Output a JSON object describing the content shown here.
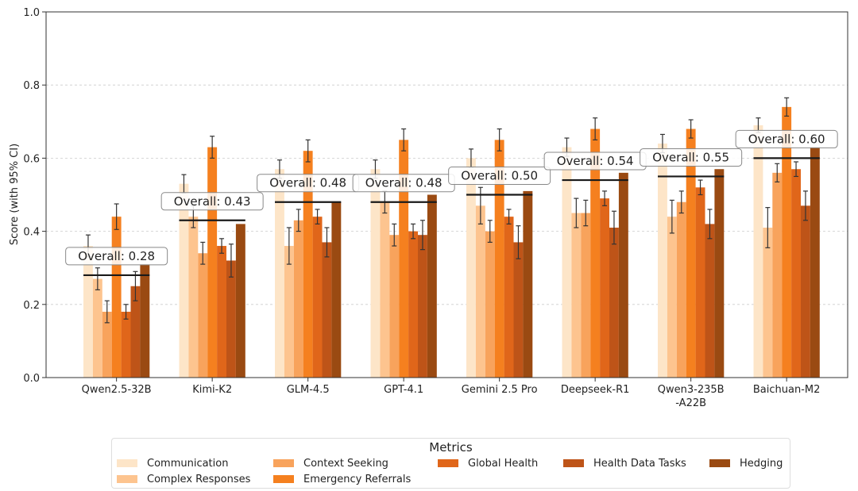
{
  "chart_data": {
    "type": "bar",
    "ylabel": "Score (with 95% CI)",
    "xlabel": "",
    "ylim": [
      0.0,
      1.0
    ],
    "yticks": [
      "0.0",
      "0.2",
      "0.4",
      "0.6",
      "0.8",
      "1.0"
    ],
    "grid": "horizontal dashed",
    "categories": [
      "Qwen2.5-32B",
      "Kimi-K2",
      "GLM-4.5",
      "GPT-4.1",
      "Gemini 2.5 Pro",
      "Deepseek-R1",
      "Qwen3-235B\n-A22B",
      "Baichuan-M2"
    ],
    "series": [
      {
        "name": "Communication",
        "color": "#fde5c8",
        "values": [
          0.36,
          0.53,
          0.57,
          0.57,
          0.6,
          0.63,
          0.64,
          0.69
        ],
        "ci": [
          0.03,
          0.025,
          0.025,
          0.025,
          0.025,
          0.025,
          0.025,
          0.02
        ]
      },
      {
        "name": "Complex Responses",
        "color": "#fdc48f",
        "values": [
          0.27,
          0.44,
          0.36,
          0.48,
          0.47,
          0.45,
          0.44,
          0.41
        ],
        "ci": [
          0.03,
          0.03,
          0.05,
          0.03,
          0.05,
          0.04,
          0.045,
          0.055
        ]
      },
      {
        "name": "Context Seeking",
        "color": "#f8a35c",
        "values": [
          0.18,
          0.34,
          0.43,
          0.39,
          0.4,
          0.45,
          0.48,
          0.56
        ],
        "ci": [
          0.03,
          0.03,
          0.03,
          0.03,
          0.03,
          0.035,
          0.03,
          0.025
        ]
      },
      {
        "name": "Emergency Referrals",
        "color": "#f5801f",
        "values": [
          0.44,
          0.63,
          0.62,
          0.65,
          0.65,
          0.68,
          0.68,
          0.74
        ],
        "ci": [
          0.035,
          0.03,
          0.03,
          0.03,
          0.03,
          0.03,
          0.025,
          0.025
        ]
      },
      {
        "name": "Global Health",
        "color": "#e0661a",
        "values": [
          0.18,
          0.36,
          0.44,
          0.4,
          0.44,
          0.49,
          0.52,
          0.57
        ],
        "ci": [
          0.02,
          0.02,
          0.02,
          0.02,
          0.02,
          0.02,
          0.02,
          0.02
        ]
      },
      {
        "name": "Health Data Tasks",
        "color": "#be5418",
        "values": [
          0.25,
          0.32,
          0.37,
          0.39,
          0.37,
          0.41,
          0.42,
          0.47
        ],
        "ci": [
          0.04,
          0.045,
          0.04,
          0.04,
          0.045,
          0.045,
          0.04,
          0.04
        ]
      },
      {
        "name": "Hedging",
        "color": "#9a4a12",
        "values": [
          0.31,
          0.42,
          0.48,
          0.5,
          0.51,
          0.56,
          0.57,
          0.63
        ],
        "ci": [
          0.0,
          0.0,
          0.0,
          0.0,
          0.0,
          0.0,
          0.0,
          0.0
        ]
      }
    ],
    "overall": [
      0.28,
      0.43,
      0.48,
      0.48,
      0.5,
      0.54,
      0.55,
      0.6
    ],
    "overall_labels": [
      "Overall: 0.28",
      "Overall: 0.43",
      "Overall: 0.48",
      "Overall: 0.48",
      "Overall: 0.50",
      "Overall: 0.54",
      "Overall: 0.55",
      "Overall: 0.60"
    ],
    "legend_title": "Metrics",
    "legend_position": "bottom-center"
  }
}
